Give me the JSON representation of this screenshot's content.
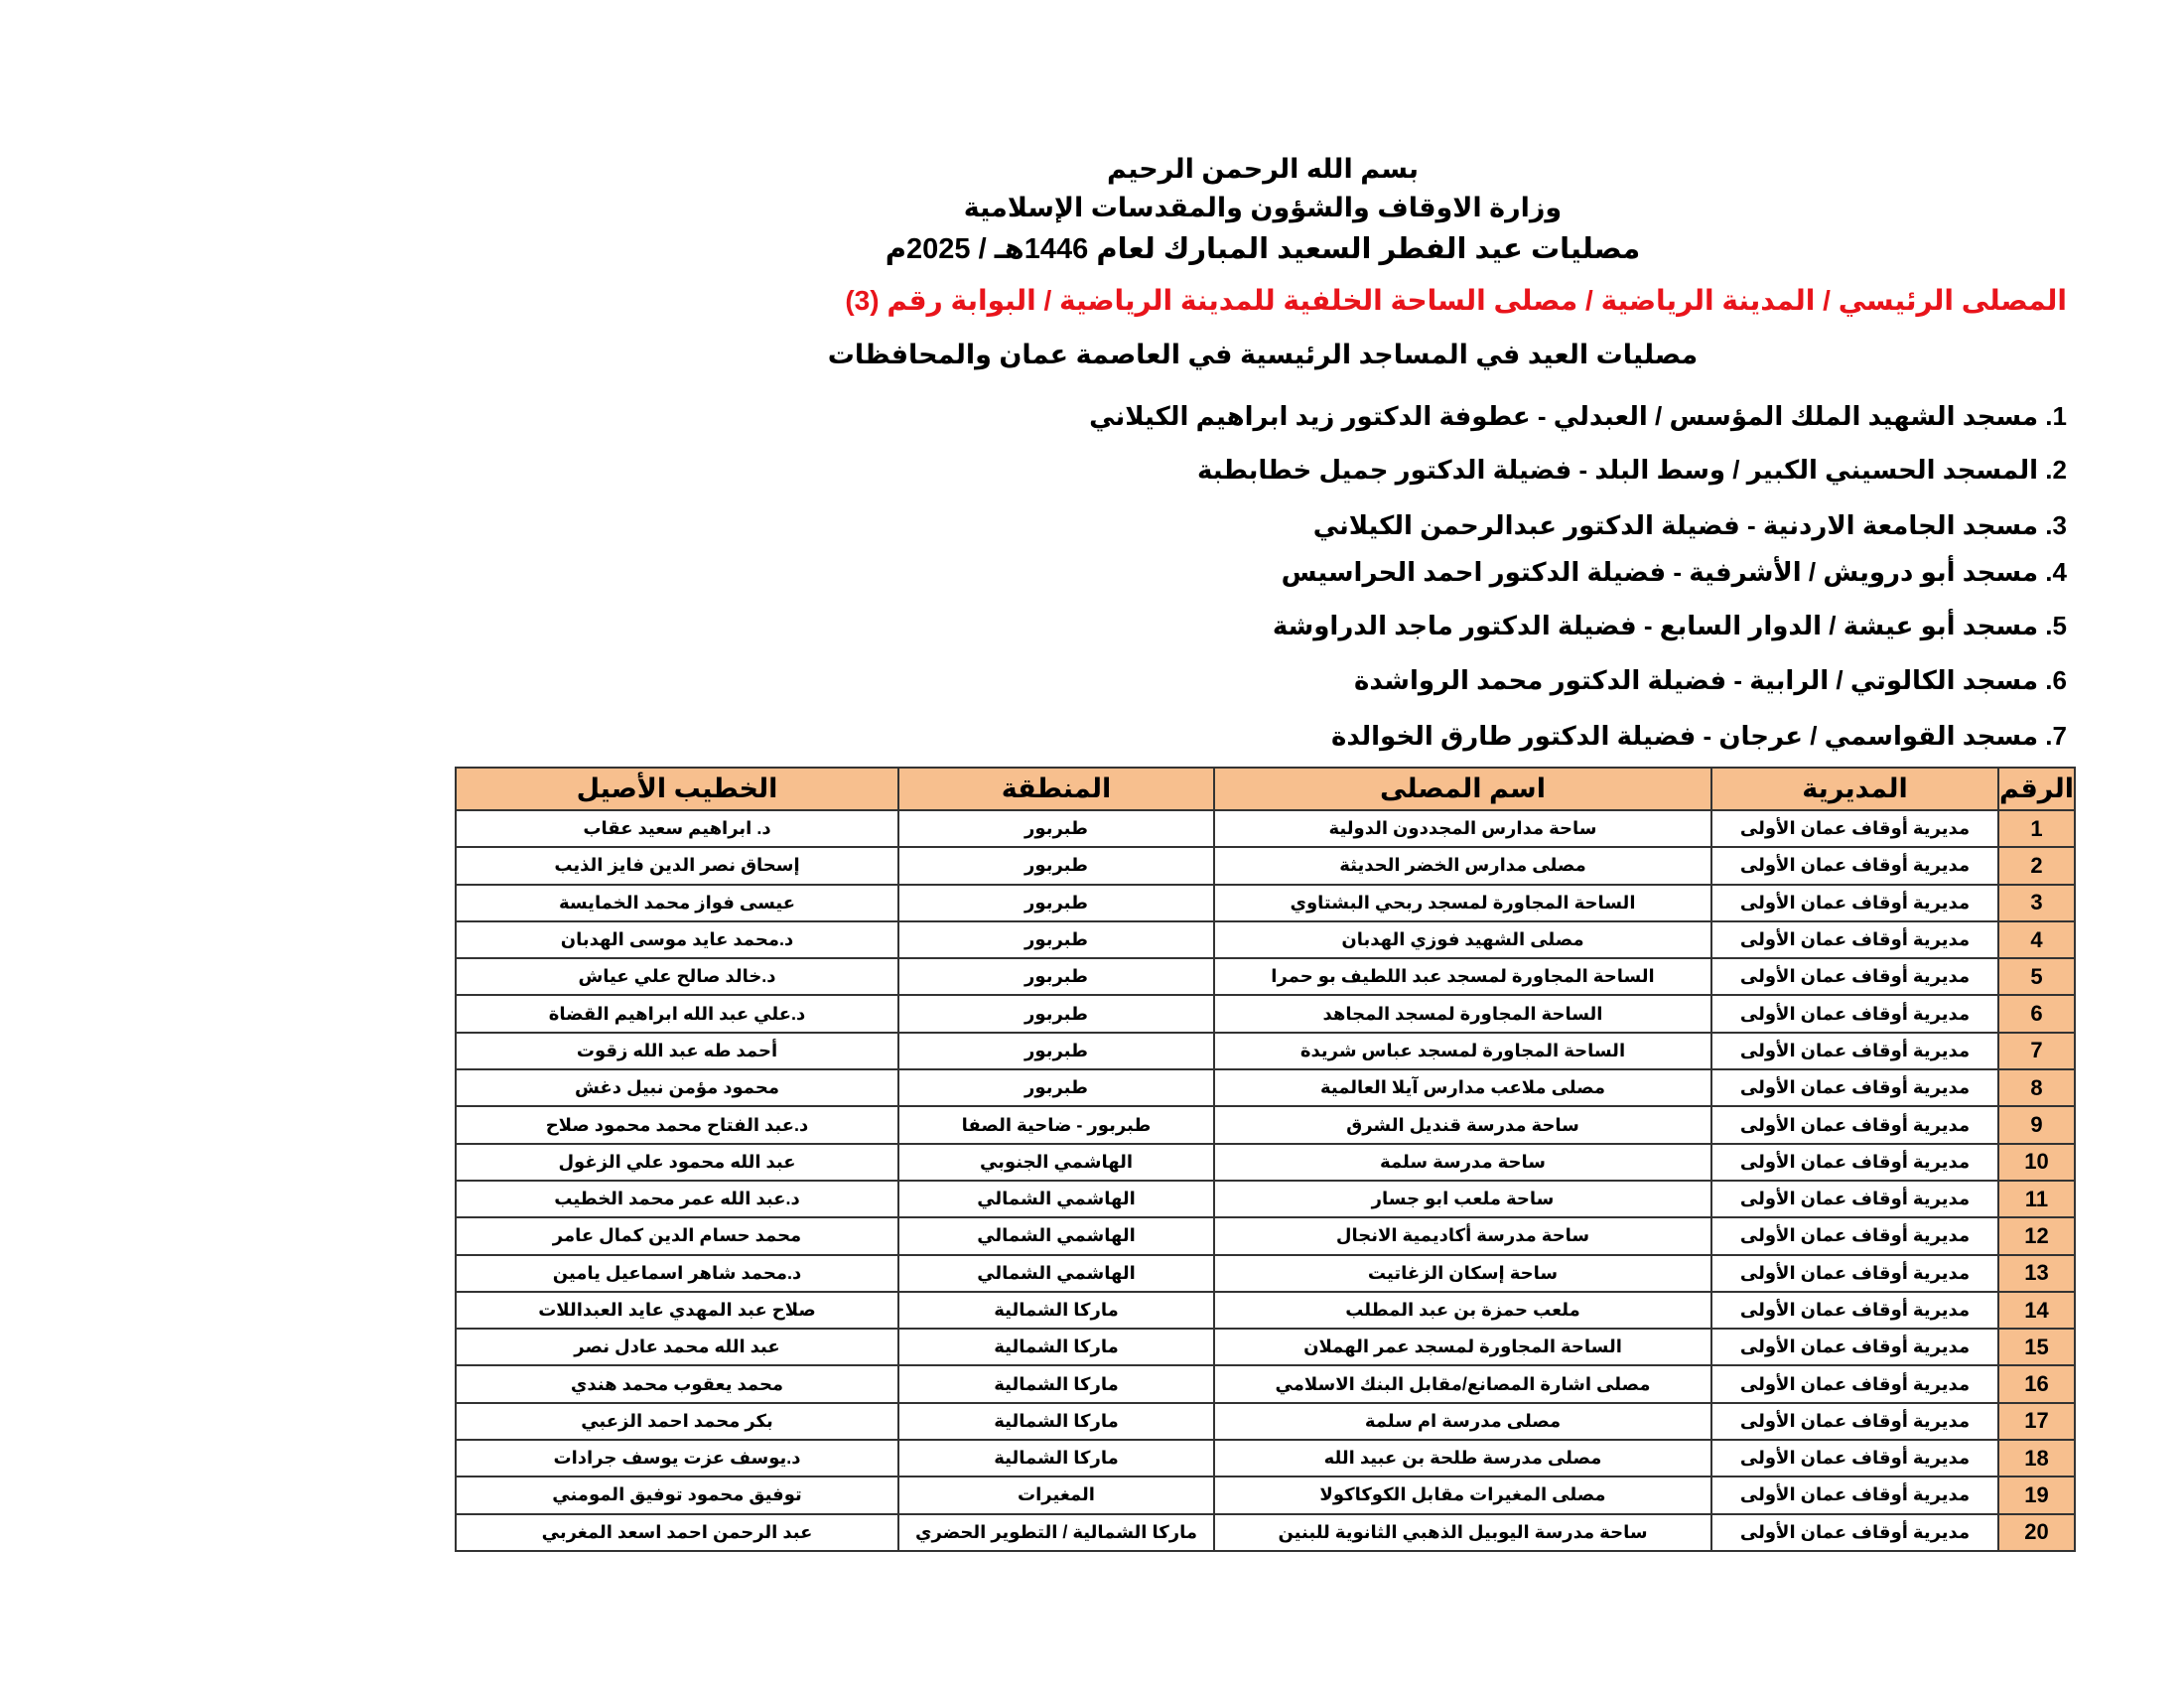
{
  "header": {
    "basmala": "بسم الله الرحمن الرحيم",
    "ministry": "وزارة الاوقاف والشؤون والمقدسات الإسلامية",
    "title": "مصليات عيد الفطر السعيد المبارك لعام 1446هـ / 2025م",
    "main_prayer_ground": "المصلى الرئيسي / المدينة الرياضية / مصلى الساحة الخلفية للمدينة الرياضية / البوابة رقم (3)",
    "subtitle": "مصليات العيد في المساجد الرئيسية في العاصمة عمان والمحافظات",
    "accent_color": "#e8141b"
  },
  "mosques": [
    "1. مسجد الشهيد الملك المؤسس / العبدلي - عطوفة الدكتور زيد ابراهيم الكيلاني",
    "2. المسجد الحسيني الكبير / وسط البلد - فضيلة الدكتور جميل خطابطبة",
    "3. مسجد الجامعة الاردنية - فضيلة الدكتور عبدالرحمن الكيلاني",
    "4. مسجد أبو درويش / الأشرفية - فضيلة الدكتور احمد الحراسيس",
    "5. مسجد أبو عيشة / الدوار السابع - فضيلة الدكتور ماجد الدراوشة",
    "6. مسجد الكالوتي / الرابية - فضيلة الدكتور محمد الرواشدة",
    "7. مسجد القواسمي / عرجان - فضيلة الدكتور طارق الخوالدة"
  ],
  "table": {
    "header_color": "#f7bf8e",
    "columns": [
      "الرقم",
      "المديرية",
      "اسم المصلى",
      "المنطقة",
      "الخطيب الأصيل"
    ],
    "rows": [
      [
        "1",
        "مديرية أوقاف عمان الأولى",
        "ساحة مدارس المجددون الدولية",
        "طبربور",
        "د. ابراهيم سعيد عقاب"
      ],
      [
        "2",
        "مديرية أوقاف عمان الأولى",
        "مصلى مدارس الخضر الحديثة",
        "طبربور",
        "إسحاق نصر الدين فايز الذيب"
      ],
      [
        "3",
        "مديرية أوقاف عمان الأولى",
        "الساحة المجاورة لمسجد ربحي البشتاوي",
        "طبربور",
        "عيسى فواز محمد الخمايسة"
      ],
      [
        "4",
        "مديرية أوقاف عمان الأولى",
        "مصلى الشهيد فوزي الهدبان",
        "طبربور",
        "د.محمد عايد موسى الهدبان"
      ],
      [
        "5",
        "مديرية أوقاف عمان الأولى",
        "الساحة المجاورة لمسجد عبد اللطيف بو حمرا",
        "طبربور",
        "د.خالد صالح علي عياش"
      ],
      [
        "6",
        "مديرية أوقاف عمان الأولى",
        "الساحة المجاورة لمسجد المجاهد",
        "طبربور",
        "د.علي عبد الله ابراهيم القضاة"
      ],
      [
        "7",
        "مديرية أوقاف عمان الأولى",
        "الساحة المجاورة لمسجد عباس شريدة",
        "طبربور",
        "أحمد طه عبد الله زقوت"
      ],
      [
        "8",
        "مديرية أوقاف عمان الأولى",
        "مصلى ملاعب مدارس آيلا العالمية",
        "طبربور",
        "محمود مؤمن نبيل دغش"
      ],
      [
        "9",
        "مديرية أوقاف عمان الأولى",
        "ساحة مدرسة قنديل الشرق",
        "طبربور - ضاحية الصفا",
        "د.عبد الفتاح محمد محمود صلاح"
      ],
      [
        "10",
        "مديرية أوقاف عمان الأولى",
        "ساحة مدرسة سلمة",
        "الهاشمي الجنوبي",
        "عبد الله محمود علي الزغول"
      ],
      [
        "11",
        "مديرية أوقاف عمان الأولى",
        "ساحة ملعب ابو جسار",
        "الهاشمي الشمالي",
        "د.عبد الله عمر محمد الخطيب"
      ],
      [
        "12",
        "مديرية أوقاف عمان الأولى",
        "ساحة مدرسة أكاديمية الانجال",
        "الهاشمي الشمالي",
        "محمد حسام الدين كمال عامر"
      ],
      [
        "13",
        "مديرية أوقاف عمان الأولى",
        "ساحة إسكان الزغاتيت",
        "الهاشمي الشمالي",
        "د.محمد شاهر اسماعيل يامين"
      ],
      [
        "14",
        "مديرية أوقاف عمان الأولى",
        "ملعب حمزة بن عبد المطلب",
        "ماركا الشمالية",
        "صلاح عبد المهدي عايد العبداللات"
      ],
      [
        "15",
        "مديرية أوقاف عمان الأولى",
        "الساحة المجاورة لمسجد عمر الهملان",
        "ماركا الشمالية",
        "عبد الله محمد عادل نصر"
      ],
      [
        "16",
        "مديرية أوقاف عمان الأولى",
        "مصلى اشارة المصانع/مقابل البنك الاسلامي",
        "ماركا الشمالية",
        "محمد يعقوب محمد هندي"
      ],
      [
        "17",
        "مديرية أوقاف عمان الأولى",
        "مصلى مدرسة ام سلمة",
        "ماركا الشمالية",
        "بكر محمد احمد الزعبي"
      ],
      [
        "18",
        "مديرية أوقاف عمان الأولى",
        "مصلى مدرسة طلحة بن عبيد الله",
        "ماركا الشمالية",
        "د.يوسف عزت يوسف جرادات"
      ],
      [
        "19",
        "مديرية أوقاف عمان الأولى",
        "مصلى المغيرات مقابل الكوكاكولا",
        "المغيرات",
        "توفيق محمود توفيق المومني"
      ],
      [
        "20",
        "مديرية أوقاف عمان الأولى",
        "ساحة مدرسة اليوبيل الذهبي الثانوية للبنين",
        "ماركا الشمالية / التطوير الحضري",
        "عبد الرحمن احمد اسعد المغربي"
      ]
    ]
  }
}
